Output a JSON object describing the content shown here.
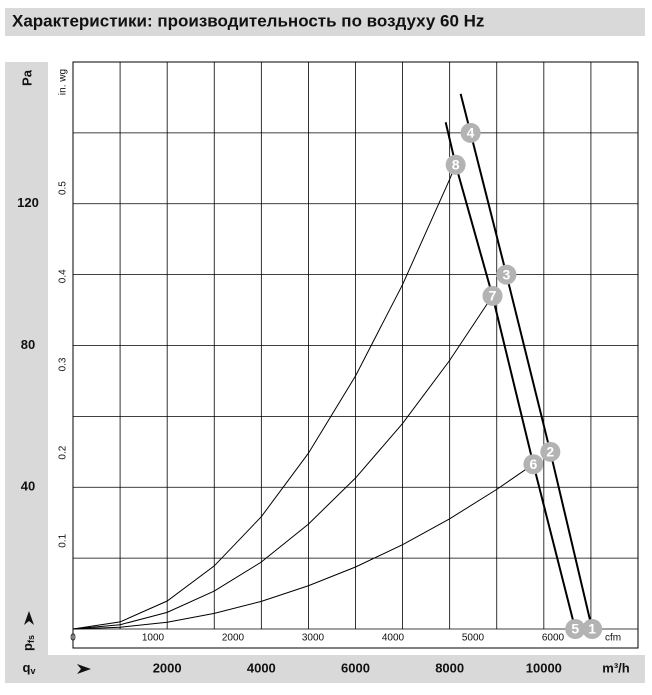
{
  "chart_data": {
    "type": "line",
    "title": "Характеристики: производительность по воздуху 60 Hz",
    "y_unit": "Pa",
    "y2_unit": "in. wg",
    "x_unit": "m³/h",
    "x2_unit": "cfm",
    "x_label": "q",
    "x_label_sub": "v",
    "y_label": "p",
    "y_label_sub": "fs",
    "xlim": [
      0,
      12000
    ],
    "ylim": [
      0,
      160
    ],
    "x2lim": [
      0,
      7063
    ],
    "y2lim": [
      0,
      0.643
    ],
    "xticks": [
      2000,
      4000,
      6000,
      8000,
      10000
    ],
    "yticks": [
      40,
      80,
      120
    ],
    "x2ticks": [
      0,
      1000,
      2000,
      3000,
      4000,
      5000,
      6000
    ],
    "y2ticks": [
      0.1,
      0.2,
      0.3,
      0.4,
      0.5
    ],
    "xgrid": [
      0,
      1000,
      2000,
      3000,
      4000,
      5000,
      6000,
      7000,
      8000,
      9000,
      10000,
      11000,
      12000
    ],
    "ygrid": [
      0,
      20,
      40,
      60,
      80,
      100,
      120,
      140,
      160
    ],
    "grid": true,
    "series": [
      {
        "color": "#000000",
        "width": 2,
        "x": [
          8233,
          8444,
          9206,
          10138,
          11026
        ],
        "values": [
          151,
          140,
          100,
          50,
          0
        ]
      },
      {
        "color": "#000000",
        "width": 2,
        "x": [
          7915,
          8127,
          8910,
          9778,
          10667
        ],
        "values": [
          143,
          131,
          94,
          46.5,
          0
        ]
      },
      {
        "color": "#000000",
        "width": 1,
        "x": [
          0,
          1000,
          2000,
          3000,
          4000,
          5000,
          6000,
          7000,
          8000,
          8127
        ],
        "values": [
          0,
          2.0,
          7.9,
          17.8,
          31.7,
          49.6,
          71.4,
          97.2,
          126.9,
          131
        ]
      },
      {
        "color": "#000000",
        "width": 1,
        "x": [
          0,
          1000,
          2000,
          3000,
          4000,
          5000,
          6000,
          7000,
          8000,
          8910
        ],
        "values": [
          0,
          1.2,
          4.7,
          10.7,
          18.9,
          29.6,
          42.6,
          58.0,
          75.8,
          94
        ]
      },
      {
        "color": "#000000",
        "width": 1,
        "x": [
          0,
          1000,
          2000,
          3000,
          4000,
          5000,
          6000,
          7000,
          8000,
          9000,
          9778
        ],
        "values": [
          0,
          0.5,
          1.9,
          4.4,
          7.8,
          12.2,
          17.5,
          23.8,
          31.1,
          39.4,
          46.5
        ]
      }
    ],
    "markers": [
      {
        "label": "4",
        "x": 8444,
        "y": 140
      },
      {
        "label": "3",
        "x": 9206,
        "y": 100
      },
      {
        "label": "2",
        "x": 10138,
        "y": 50
      },
      {
        "label": "1",
        "x": 11026,
        "y": 0
      },
      {
        "label": "8",
        "x": 8127,
        "y": 131
      },
      {
        "label": "7",
        "x": 8910,
        "y": 94
      },
      {
        "label": "6",
        "x": 9778,
        "y": 46.5
      },
      {
        "label": "5",
        "x": 10667,
        "y": 0
      }
    ],
    "marker_color": "#b3b3b3"
  }
}
